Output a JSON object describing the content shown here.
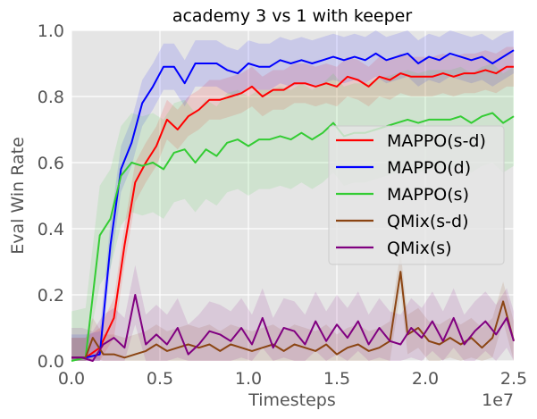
{
  "chart_data": {
    "type": "line",
    "title": "academy 3 vs 1 with keeper",
    "xlabel": "Timesteps",
    "ylabel": "Eval Win Rate",
    "x_offset_label": "1e7",
    "xlim": [
      0,
      2.5
    ],
    "ylim": [
      0,
      1.0
    ],
    "x_ticks": [
      "0.0",
      "0.5",
      "1.0",
      "1.5",
      "2.0",
      "2.5"
    ],
    "y_ticks": [
      "0.0",
      "0.2",
      "0.4",
      "0.6",
      "0.8",
      "1.0"
    ],
    "grid": true,
    "legend_position": "center-right",
    "background": "#e5e5e5",
    "series": [
      {
        "name": "MAPPO(s-d)",
        "color": "#ff0000",
        "band": 0.06,
        "points": [
          [
            0,
            0.01
          ],
          [
            0.08,
            0.01
          ],
          [
            0.16,
            0.04
          ],
          [
            0.24,
            0.13
          ],
          [
            0.3,
            0.35
          ],
          [
            0.36,
            0.54
          ],
          [
            0.42,
            0.6
          ],
          [
            0.48,
            0.65
          ],
          [
            0.54,
            0.73
          ],
          [
            0.6,
            0.7
          ],
          [
            0.66,
            0.74
          ],
          [
            0.72,
            0.76
          ],
          [
            0.78,
            0.79
          ],
          [
            0.84,
            0.79
          ],
          [
            0.9,
            0.8
          ],
          [
            0.96,
            0.81
          ],
          [
            1.02,
            0.83
          ],
          [
            1.08,
            0.8
          ],
          [
            1.14,
            0.82
          ],
          [
            1.2,
            0.82
          ],
          [
            1.26,
            0.84
          ],
          [
            1.32,
            0.84
          ],
          [
            1.38,
            0.83
          ],
          [
            1.44,
            0.84
          ],
          [
            1.5,
            0.83
          ],
          [
            1.56,
            0.86
          ],
          [
            1.62,
            0.85
          ],
          [
            1.68,
            0.83
          ],
          [
            1.74,
            0.86
          ],
          [
            1.8,
            0.85
          ],
          [
            1.86,
            0.87
          ],
          [
            1.92,
            0.86
          ],
          [
            1.98,
            0.86
          ],
          [
            2.04,
            0.86
          ],
          [
            2.1,
            0.87
          ],
          [
            2.16,
            0.86
          ],
          [
            2.22,
            0.87
          ],
          [
            2.28,
            0.87
          ],
          [
            2.34,
            0.88
          ],
          [
            2.4,
            0.87
          ],
          [
            2.46,
            0.89
          ],
          [
            2.5,
            0.89
          ]
        ]
      },
      {
        "name": "MAPPO(d)",
        "color": "#0000ff",
        "band": 0.07,
        "points": [
          [
            0,
            0.01
          ],
          [
            0.08,
            0.01
          ],
          [
            0.16,
            0.02
          ],
          [
            0.22,
            0.35
          ],
          [
            0.28,
            0.58
          ],
          [
            0.34,
            0.66
          ],
          [
            0.4,
            0.78
          ],
          [
            0.46,
            0.83
          ],
          [
            0.52,
            0.89
          ],
          [
            0.58,
            0.89
          ],
          [
            0.64,
            0.84
          ],
          [
            0.7,
            0.9
          ],
          [
            0.76,
            0.9
          ],
          [
            0.82,
            0.9
          ],
          [
            0.88,
            0.88
          ],
          [
            0.94,
            0.87
          ],
          [
            1.0,
            0.9
          ],
          [
            1.06,
            0.89
          ],
          [
            1.12,
            0.89
          ],
          [
            1.18,
            0.91
          ],
          [
            1.24,
            0.9
          ],
          [
            1.3,
            0.91
          ],
          [
            1.36,
            0.9
          ],
          [
            1.42,
            0.91
          ],
          [
            1.48,
            0.92
          ],
          [
            1.54,
            0.91
          ],
          [
            1.6,
            0.92
          ],
          [
            1.66,
            0.91
          ],
          [
            1.72,
            0.93
          ],
          [
            1.78,
            0.91
          ],
          [
            1.84,
            0.92
          ],
          [
            1.9,
            0.93
          ],
          [
            1.96,
            0.9
          ],
          [
            2.02,
            0.92
          ],
          [
            2.08,
            0.91
          ],
          [
            2.14,
            0.93
          ],
          [
            2.2,
            0.92
          ],
          [
            2.26,
            0.91
          ],
          [
            2.32,
            0.92
          ],
          [
            2.38,
            0.9
          ],
          [
            2.44,
            0.92
          ],
          [
            2.5,
            0.94
          ]
        ]
      },
      {
        "name": "MAPPO(s)",
        "color": "#33cc33",
        "band": 0.15,
        "points": [
          [
            0,
            0.0
          ],
          [
            0.08,
            0.01
          ],
          [
            0.16,
            0.38
          ],
          [
            0.22,
            0.43
          ],
          [
            0.28,
            0.56
          ],
          [
            0.34,
            0.6
          ],
          [
            0.4,
            0.59
          ],
          [
            0.46,
            0.6
          ],
          [
            0.52,
            0.58
          ],
          [
            0.58,
            0.63
          ],
          [
            0.64,
            0.64
          ],
          [
            0.7,
            0.6
          ],
          [
            0.76,
            0.64
          ],
          [
            0.82,
            0.62
          ],
          [
            0.88,
            0.66
          ],
          [
            0.94,
            0.67
          ],
          [
            1.0,
            0.65
          ],
          [
            1.06,
            0.67
          ],
          [
            1.12,
            0.67
          ],
          [
            1.18,
            0.68
          ],
          [
            1.24,
            0.67
          ],
          [
            1.3,
            0.69
          ],
          [
            1.36,
            0.67
          ],
          [
            1.42,
            0.69
          ],
          [
            1.48,
            0.72
          ],
          [
            1.54,
            0.68
          ],
          [
            1.6,
            0.69
          ],
          [
            1.66,
            0.69
          ],
          [
            1.72,
            0.7
          ],
          [
            1.78,
            0.71
          ],
          [
            1.84,
            0.72
          ],
          [
            1.9,
            0.73
          ],
          [
            1.96,
            0.72
          ],
          [
            2.02,
            0.73
          ],
          [
            2.08,
            0.73
          ],
          [
            2.14,
            0.73
          ],
          [
            2.2,
            0.74
          ],
          [
            2.26,
            0.72
          ],
          [
            2.32,
            0.74
          ],
          [
            2.38,
            0.75
          ],
          [
            2.44,
            0.72
          ],
          [
            2.5,
            0.74
          ]
        ]
      },
      {
        "name": "QMix(s-d)",
        "color": "#8b4513",
        "band": 0.06,
        "points": [
          [
            0,
            0.01
          ],
          [
            0.08,
            0.01
          ],
          [
            0.12,
            0.07
          ],
          [
            0.18,
            0.02
          ],
          [
            0.24,
            0.02
          ],
          [
            0.3,
            0.01
          ],
          [
            0.36,
            0.02
          ],
          [
            0.42,
            0.03
          ],
          [
            0.48,
            0.05
          ],
          [
            0.54,
            0.03
          ],
          [
            0.6,
            0.04
          ],
          [
            0.66,
            0.05
          ],
          [
            0.72,
            0.04
          ],
          [
            0.78,
            0.05
          ],
          [
            0.84,
            0.03
          ],
          [
            0.9,
            0.05
          ],
          [
            0.96,
            0.04
          ],
          [
            1.02,
            0.03
          ],
          [
            1.08,
            0.04
          ],
          [
            1.14,
            0.05
          ],
          [
            1.2,
            0.03
          ],
          [
            1.26,
            0.05
          ],
          [
            1.32,
            0.04
          ],
          [
            1.38,
            0.03
          ],
          [
            1.44,
            0.05
          ],
          [
            1.5,
            0.02
          ],
          [
            1.56,
            0.04
          ],
          [
            1.62,
            0.05
          ],
          [
            1.68,
            0.03
          ],
          [
            1.74,
            0.04
          ],
          [
            1.8,
            0.06
          ],
          [
            1.86,
            0.27
          ],
          [
            1.9,
            0.08
          ],
          [
            1.96,
            0.1
          ],
          [
            2.02,
            0.06
          ],
          [
            2.08,
            0.05
          ],
          [
            2.14,
            0.07
          ],
          [
            2.2,
            0.05
          ],
          [
            2.26,
            0.07
          ],
          [
            2.32,
            0.04
          ],
          [
            2.38,
            0.07
          ],
          [
            2.44,
            0.18
          ],
          [
            2.5,
            0.06
          ]
        ]
      },
      {
        "name": "QMix(s)",
        "color": "#800080",
        "band": 0.09,
        "points": [
          [
            0,
            0.01
          ],
          [
            0.06,
            0.01
          ],
          [
            0.12,
            0.0
          ],
          [
            0.18,
            0.05
          ],
          [
            0.24,
            0.07
          ],
          [
            0.3,
            0.04
          ],
          [
            0.36,
            0.2
          ],
          [
            0.42,
            0.05
          ],
          [
            0.48,
            0.08
          ],
          [
            0.54,
            0.05
          ],
          [
            0.6,
            0.1
          ],
          [
            0.66,
            0.02
          ],
          [
            0.72,
            0.05
          ],
          [
            0.78,
            0.09
          ],
          [
            0.84,
            0.08
          ],
          [
            0.9,
            0.06
          ],
          [
            0.96,
            0.1
          ],
          [
            1.02,
            0.05
          ],
          [
            1.08,
            0.13
          ],
          [
            1.14,
            0.04
          ],
          [
            1.2,
            0.1
          ],
          [
            1.26,
            0.09
          ],
          [
            1.32,
            0.05
          ],
          [
            1.38,
            0.12
          ],
          [
            1.44,
            0.06
          ],
          [
            1.5,
            0.11
          ],
          [
            1.56,
            0.07
          ],
          [
            1.62,
            0.12
          ],
          [
            1.68,
            0.05
          ],
          [
            1.74,
            0.1
          ],
          [
            1.8,
            0.06
          ],
          [
            1.86,
            0.05
          ],
          [
            1.92,
            0.1
          ],
          [
            1.98,
            0.07
          ],
          [
            2.04,
            0.12
          ],
          [
            2.1,
            0.06
          ],
          [
            2.16,
            0.13
          ],
          [
            2.22,
            0.05
          ],
          [
            2.28,
            0.09
          ],
          [
            2.34,
            0.12
          ],
          [
            2.4,
            0.08
          ],
          [
            2.46,
            0.13
          ],
          [
            2.5,
            0.06
          ]
        ]
      }
    ]
  }
}
